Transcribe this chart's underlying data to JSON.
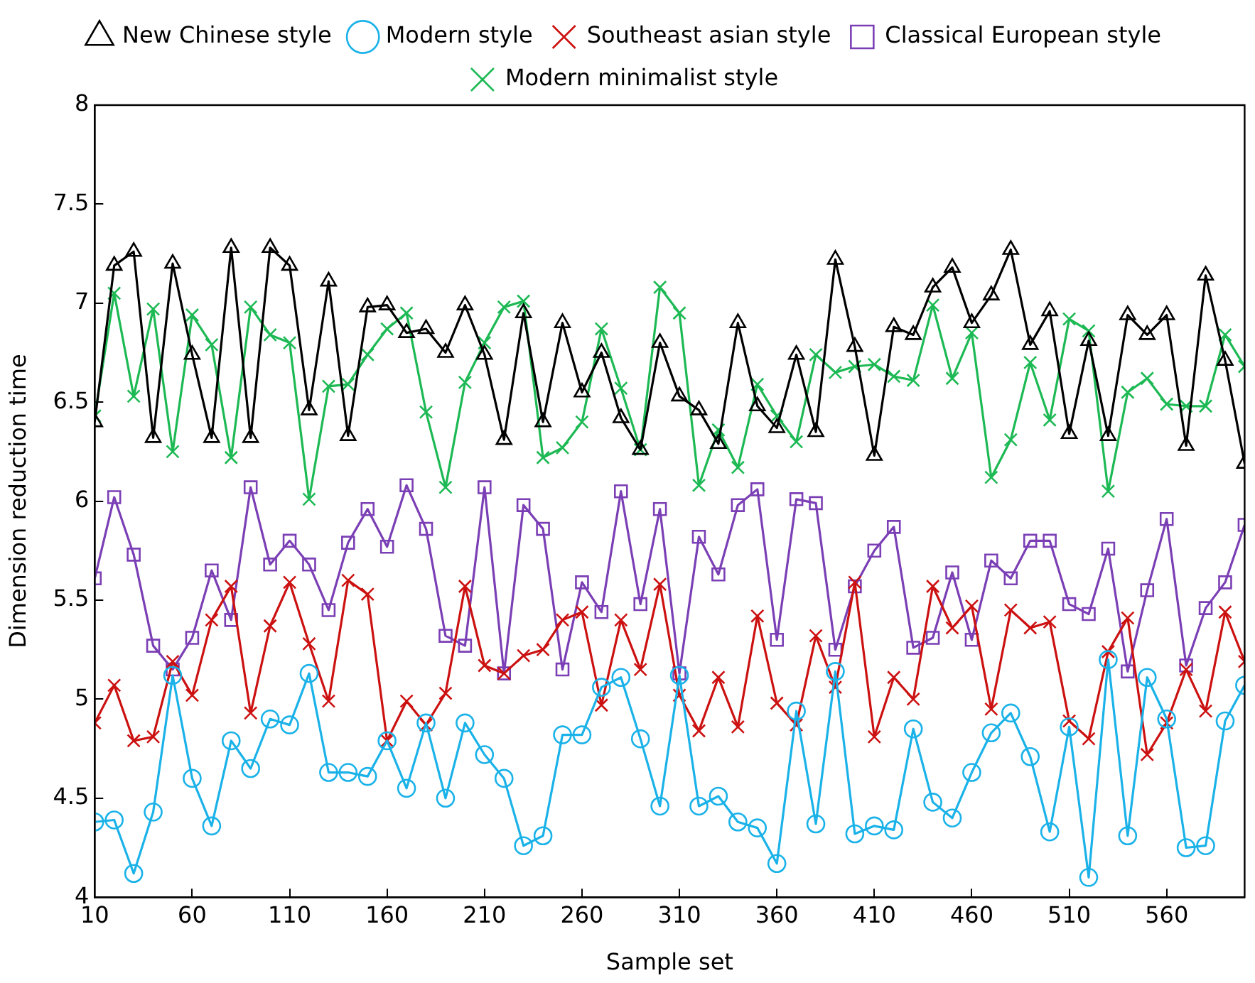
{
  "chart_data": {
    "type": "line",
    "xlabel": "Sample set",
    "ylabel": "Dimension reduction time",
    "x": [
      10,
      20,
      30,
      40,
      50,
      60,
      70,
      80,
      90,
      100,
      110,
      120,
      130,
      140,
      150,
      160,
      170,
      180,
      190,
      200,
      210,
      220,
      230,
      240,
      250,
      260,
      270,
      280,
      290,
      300,
      310,
      320,
      330,
      340,
      350,
      360,
      370,
      380,
      390,
      400,
      410,
      420,
      430,
      440,
      450,
      460,
      470,
      480,
      490,
      500,
      510,
      520,
      530,
      540,
      550,
      560,
      570,
      580,
      590,
      600
    ],
    "xlim": [
      10,
      600
    ],
    "xticks": [
      10,
      60,
      110,
      160,
      210,
      260,
      310,
      360,
      410,
      460,
      510,
      560
    ],
    "ylim": [
      4,
      8
    ],
    "yticks": [
      4,
      4.5,
      5,
      5.5,
      6,
      6.5,
      7,
      7.5,
      8
    ],
    "grid": false,
    "legend": "top",
    "series": [
      {
        "name": "New Chinese style",
        "color": "#000000",
        "marker": "triangle",
        "values": [
          6.4,
          7.19,
          7.26,
          6.32,
          7.2,
          6.74,
          6.32,
          7.28,
          6.32,
          7.28,
          7.19,
          6.46,
          7.11,
          6.33,
          6.98,
          6.99,
          6.85,
          6.87,
          6.75,
          6.99,
          6.74,
          6.31,
          6.95,
          6.4,
          6.9,
          6.55,
          6.75,
          6.42,
          6.26,
          6.8,
          6.53,
          6.46,
          6.29,
          6.9,
          6.48,
          6.37,
          6.74,
          6.35,
          7.22,
          6.78,
          6.23,
          6.88,
          6.84,
          7.08,
          7.18,
          6.9,
          7.04,
          7.27,
          6.79,
          6.96,
          6.34,
          6.81,
          6.33,
          6.94,
          6.84,
          6.94,
          6.28,
          7.14,
          6.71,
          6.19
        ]
      },
      {
        "name": "Modern style",
        "color": "#1ab2e8",
        "marker": "circle",
        "values": [
          4.38,
          4.39,
          4.12,
          4.43,
          5.12,
          4.6,
          4.36,
          4.79,
          4.65,
          4.9,
          4.87,
          5.13,
          4.63,
          4.63,
          4.61,
          4.79,
          4.55,
          4.88,
          4.5,
          4.88,
          4.72,
          4.6,
          4.26,
          4.31,
          4.82,
          4.82,
          5.06,
          5.11,
          4.8,
          4.46,
          5.12,
          4.46,
          4.51,
          4.38,
          4.35,
          4.17,
          4.94,
          4.37,
          5.14,
          4.32,
          4.36,
          4.34,
          4.85,
          4.48,
          4.4,
          4.63,
          4.83,
          4.93,
          4.71,
          4.33,
          4.86,
          4.1,
          5.2,
          4.31,
          5.11,
          4.9,
          4.25,
          4.26,
          4.89,
          5.07
        ]
      },
      {
        "name": "Southeast asian style",
        "color": "#cc1111",
        "marker": "cross",
        "values": [
          4.88,
          5.07,
          4.79,
          4.81,
          5.19,
          5.02,
          5.4,
          5.57,
          4.93,
          5.37,
          5.59,
          5.28,
          4.99,
          5.6,
          5.53,
          4.79,
          4.99,
          4.87,
          5.03,
          5.57,
          5.17,
          5.13,
          5.22,
          5.25,
          5.4,
          5.44,
          4.97,
          5.4,
          5.15,
          5.58,
          5.02,
          4.84,
          5.11,
          4.86,
          5.42,
          4.98,
          4.87,
          5.32,
          5.06,
          5.59,
          4.81,
          5.11,
          5,
          5.57,
          5.36,
          5.47,
          4.95,
          5.45,
          5.36,
          5.39,
          4.89,
          4.8,
          5.24,
          5.41,
          4.72,
          4.88,
          5.15,
          4.94,
          5.44,
          5.19
        ]
      },
      {
        "name": "Classical European style",
        "color": "#7b3fb5",
        "marker": "square",
        "values": [
          5.61,
          6.02,
          5.73,
          5.27,
          5.15,
          5.31,
          5.65,
          5.4,
          6.07,
          5.68,
          5.8,
          5.68,
          5.45,
          5.79,
          5.96,
          5.77,
          6.08,
          5.86,
          5.32,
          5.27,
          6.07,
          5.13,
          5.98,
          5.86,
          5.15,
          5.59,
          5.44,
          6.05,
          5.48,
          5.96,
          5.13,
          5.82,
          5.63,
          5.98,
          6.06,
          5.3,
          6.01,
          5.99,
          5.25,
          5.57,
          5.75,
          5.87,
          5.26,
          5.31,
          5.64,
          5.3,
          5.7,
          5.61,
          5.8,
          5.8,
          5.48,
          5.43,
          5.76,
          5.14,
          5.55,
          5.91,
          5.17,
          5.46,
          5.59,
          5.88
        ]
      },
      {
        "name": "Modern minimalist style",
        "color": "#1db954",
        "marker": "cross",
        "values": [
          6.43,
          7.05,
          6.53,
          6.97,
          6.25,
          6.94,
          6.79,
          6.22,
          6.98,
          6.84,
          6.8,
          6.01,
          6.58,
          6.59,
          6.74,
          6.87,
          6.95,
          6.45,
          6.07,
          6.6,
          6.8,
          6.98,
          7.01,
          6.22,
          6.27,
          6.4,
          6.87,
          6.57,
          6.26,
          7.08,
          6.95,
          6.08,
          6.36,
          6.17,
          6.59,
          6.43,
          6.3,
          6.74,
          6.65,
          6.68,
          6.69,
          6.63,
          6.61,
          6.99,
          6.62,
          6.85,
          6.12,
          6.31,
          6.7,
          6.41,
          6.92,
          6.86,
          6.05,
          6.55,
          6.62,
          6.49,
          6.48,
          6.48,
          6.84,
          6.68
        ]
      }
    ]
  }
}
